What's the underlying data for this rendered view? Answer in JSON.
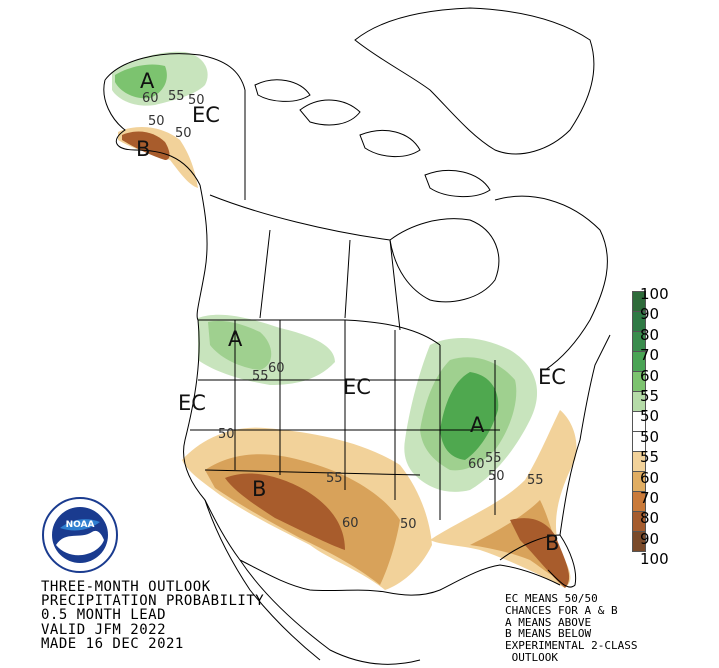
{
  "title": {
    "line1": "THREE-MONTH OUTLOOK",
    "line2": "PRECIPITATION PROBABILITY",
    "line3": "0.5 MONTH LEAD",
    "line4": "VALID JFM 2022",
    "line5": "MADE 16 DEC 2021"
  },
  "notes": {
    "line1": "EC MEANS 50/50",
    "line2": "CHANCES FOR A & B",
    "line3": "A MEANS ABOVE",
    "line4": "B MEANS BELOW",
    "line5": "EXPERIMENTAL 2-CLASS",
    "line6": " OUTLOOK"
  },
  "scale": {
    "labels": [
      "100",
      "90",
      "80",
      "70",
      "60",
      "55",
      "50",
      "50",
      "55",
      "60",
      "70",
      "80",
      "90",
      "100"
    ],
    "colors": [
      "#2e6b3a",
      "#2f7a45",
      "#3a8c4d",
      "#4aa455",
      "#7cc36f",
      "#b5dba8",
      "#ffffff",
      "#ffffff",
      "#f2d29a",
      "#e0ad62",
      "#c97a3a",
      "#a55c2e",
      "#7a4a2a",
      "#4a3525"
    ]
  },
  "map_labels": {
    "ec": "EC",
    "above": "A",
    "below": "B",
    "c50": "50",
    "c55": "55",
    "c60": "60"
  },
  "colors": {
    "above_light": "#c8e4bd",
    "above_mid": "#9fd08f",
    "above_dark": "#4fa84f",
    "below_light": "#f2d29a",
    "below_mid": "#d8a25a",
    "below_dark": "#a85c2c",
    "noaa_blue": "#1a3b8f"
  },
  "logo": {
    "text": "NOAA"
  }
}
